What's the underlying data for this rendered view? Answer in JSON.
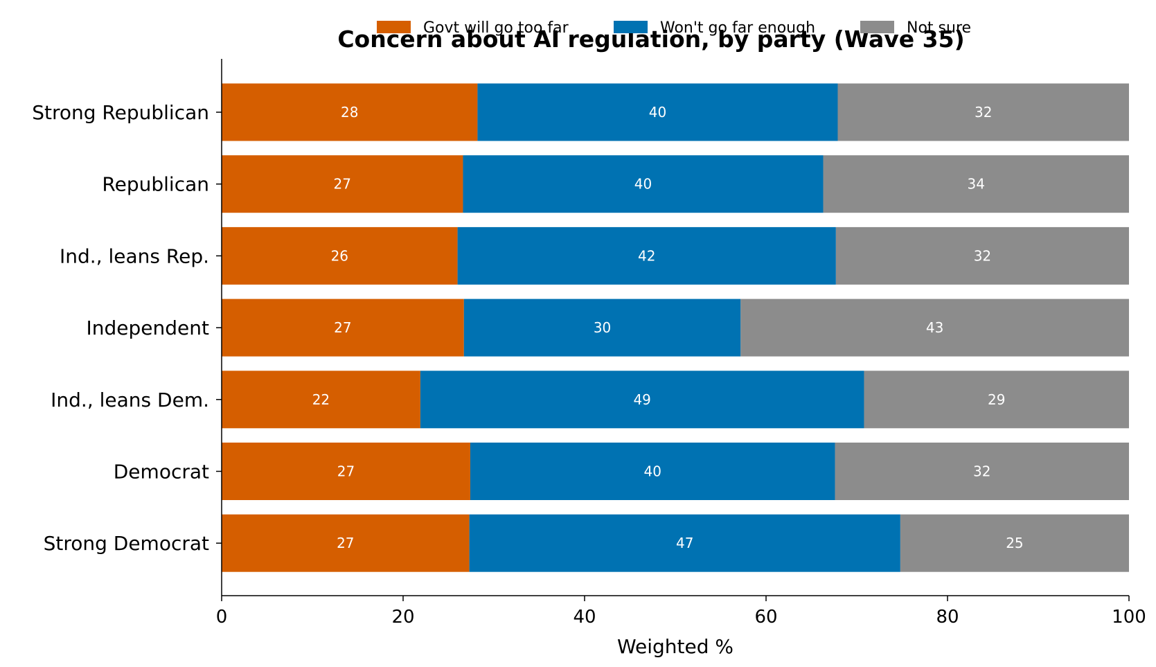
{
  "chart_data": {
    "type": "bar",
    "orientation": "horizontal",
    "stacked": true,
    "title": "Concern about AI regulation, by party (Wave 35)",
    "xlabel": "Weighted %",
    "ylabel": "",
    "xlim": [
      0,
      100
    ],
    "xticks": [
      0,
      20,
      40,
      60,
      80,
      100
    ],
    "grid": false,
    "legend_position": "top-center",
    "categories": [
      "Strong Republican",
      "Republican",
      "Ind., leans Rep.",
      "Independent",
      "Ind., leans Dem.",
      "Democrat",
      "Strong Democrat"
    ],
    "series": [
      {
        "name": "Govt will go too far",
        "color": "#d55e00",
        "values": [
          28.2,
          26.6,
          26.0,
          26.7,
          21.9,
          27.4,
          27.3
        ],
        "labels": [
          "28",
          "27",
          "26",
          "27",
          "22",
          "27",
          "27"
        ]
      },
      {
        "name": "Won't go far enough",
        "color": "#0072b2",
        "values": [
          39.7,
          39.7,
          41.7,
          30.5,
          48.9,
          40.2,
          47.5
        ],
        "labels": [
          "40",
          "40",
          "42",
          "30",
          "49",
          "40",
          "47"
        ]
      },
      {
        "name": "Not sure",
        "color": "#8c8c8c",
        "values": [
          32.1,
          33.7,
          32.3,
          42.8,
          29.2,
          32.4,
          25.2
        ],
        "labels": [
          "32",
          "34",
          "32",
          "43",
          "29",
          "32",
          "25"
        ]
      }
    ]
  }
}
